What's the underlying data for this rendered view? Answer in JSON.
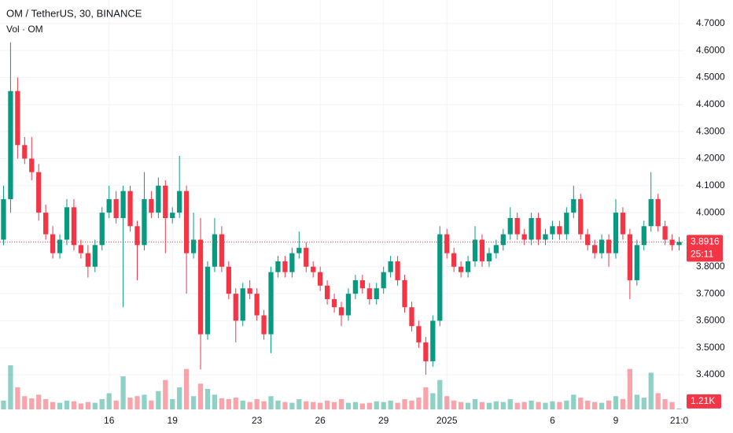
{
  "chart_data": {
    "type": "candlestick",
    "title": "OM / TetherUS, 30, BINANCE",
    "subtitle": "Vol · OM",
    "up_color": "#089981",
    "down_color": "#f23645",
    "grid": true,
    "categories": [
      null,
      null,
      null,
      null,
      null,
      null,
      null,
      null,
      null,
      null,
      null,
      null,
      null,
      null,
      null,
      "16",
      null,
      null,
      null,
      null,
      null,
      null,
      null,
      null,
      "19",
      null,
      null,
      null,
      null,
      null,
      null,
      null,
      null,
      null,
      null,
      null,
      "23",
      null,
      null,
      null,
      null,
      null,
      null,
      null,
      null,
      "26",
      null,
      null,
      null,
      null,
      null,
      null,
      null,
      null,
      "29",
      null,
      null,
      null,
      null,
      null,
      null,
      null,
      null,
      "2025",
      null,
      null,
      null,
      null,
      null,
      null,
      null,
      null,
      null,
      null,
      null,
      null,
      null,
      null,
      "6",
      null,
      null,
      null,
      null,
      null,
      null,
      null,
      null,
      "9",
      null,
      null,
      null,
      null,
      null,
      null,
      null,
      null,
      "21:0"
    ],
    "open": [
      3.9,
      4.05,
      4.45,
      4.25,
      4.2,
      4.15,
      4.0,
      3.92,
      3.85,
      3.9,
      4.02,
      3.88,
      3.85,
      3.8,
      3.88,
      4.0,
      4.05,
      3.98,
      4.08,
      3.95,
      3.88,
      4.05,
      4.0,
      4.1,
      3.98,
      4.0,
      4.08,
      3.85,
      3.9,
      3.55,
      3.8,
      3.92,
      3.8,
      3.7,
      3.6,
      3.72,
      3.7,
      3.62,
      3.55,
      3.78,
      3.82,
      3.78,
      3.85,
      3.87,
      3.8,
      3.78,
      3.73,
      3.68,
      3.65,
      3.62,
      3.7,
      3.75,
      3.72,
      3.68,
      3.72,
      3.78,
      3.82,
      3.75,
      3.65,
      3.58,
      3.52,
      3.45,
      3.6,
      3.92,
      3.85,
      3.8,
      3.78,
      3.82,
      3.9,
      3.82,
      3.85,
      3.88,
      3.92,
      3.98,
      3.92,
      3.9,
      3.98,
      3.9,
      3.92,
      3.95,
      3.92,
      4.0,
      4.05,
      3.92,
      3.88,
      3.85,
      3.9,
      3.85,
      4.0,
      3.92,
      3.75,
      3.88,
      3.95,
      4.05,
      3.95,
      3.9,
      3.88
    ],
    "high": [
      4.1,
      4.63,
      4.5,
      4.28,
      4.28,
      4.18,
      4.03,
      3.95,
      3.92,
      4.05,
      4.05,
      3.9,
      3.88,
      3.9,
      4.02,
      4.1,
      4.08,
      4.1,
      4.1,
      3.97,
      4.15,
      4.08,
      4.13,
      4.12,
      4.02,
      4.21,
      4.1,
      4.0,
      3.98,
      3.82,
      3.98,
      3.95,
      3.82,
      3.72,
      3.74,
      3.75,
      3.72,
      3.64,
      3.8,
      3.84,
      3.84,
      3.87,
      3.93,
      3.89,
      3.82,
      3.8,
      3.75,
      3.7,
      3.67,
      3.72,
      3.77,
      3.77,
      3.74,
      3.74,
      3.8,
      3.84,
      3.84,
      3.77,
      3.67,
      3.6,
      3.54,
      3.62,
      3.95,
      3.94,
      3.87,
      3.82,
      3.84,
      3.95,
      3.92,
      3.87,
      3.9,
      3.94,
      4.02,
      4.0,
      3.94,
      4.0,
      4.0,
      3.94,
      3.97,
      3.97,
      4.02,
      4.1,
      4.07,
      3.94,
      3.9,
      3.92,
      3.92,
      4.05,
      4.02,
      3.94,
      3.9,
      3.97,
      4.15,
      4.07,
      3.97,
      3.92,
      3.91
    ],
    "low": [
      3.88,
      4.0,
      4.2,
      4.18,
      4.12,
      3.97,
      3.9,
      3.83,
      3.83,
      3.88,
      3.86,
      3.83,
      3.76,
      3.78,
      3.86,
      3.98,
      3.96,
      3.65,
      3.93,
      3.75,
      3.86,
      3.98,
      3.98,
      3.85,
      3.96,
      3.98,
      3.7,
      3.83,
      3.42,
      3.53,
      3.78,
      3.78,
      3.68,
      3.52,
      3.58,
      3.68,
      3.6,
      3.53,
      3.48,
      3.76,
      3.76,
      3.76,
      3.83,
      3.78,
      3.76,
      3.71,
      3.66,
      3.63,
      3.58,
      3.6,
      3.68,
      3.7,
      3.66,
      3.66,
      3.7,
      3.76,
      3.73,
      3.63,
      3.56,
      3.5,
      3.4,
      3.43,
      3.58,
      3.83,
      3.78,
      3.76,
      3.76,
      3.8,
      3.8,
      3.8,
      3.83,
      3.86,
      3.9,
      3.9,
      3.88,
      3.88,
      3.88,
      3.88,
      3.9,
      3.9,
      3.9,
      3.98,
      3.9,
      3.86,
      3.83,
      3.83,
      3.8,
      3.83,
      3.9,
      3.68,
      3.73,
      3.86,
      3.93,
      3.93,
      3.88,
      3.86,
      3.86
    ],
    "close": [
      4.05,
      4.45,
      4.25,
      4.2,
      4.15,
      4.0,
      3.92,
      3.85,
      3.9,
      4.02,
      3.88,
      3.85,
      3.8,
      3.88,
      4.0,
      4.05,
      3.98,
      4.08,
      3.95,
      3.88,
      4.05,
      4.0,
      4.1,
      3.98,
      4.0,
      4.08,
      3.85,
      3.9,
      3.55,
      3.8,
      3.92,
      3.8,
      3.7,
      3.6,
      3.72,
      3.7,
      3.62,
      3.55,
      3.78,
      3.82,
      3.78,
      3.85,
      3.87,
      3.8,
      3.78,
      3.73,
      3.68,
      3.65,
      3.62,
      3.7,
      3.75,
      3.72,
      3.68,
      3.72,
      3.78,
      3.82,
      3.75,
      3.65,
      3.58,
      3.52,
      3.45,
      3.6,
      3.92,
      3.85,
      3.8,
      3.78,
      3.82,
      3.9,
      3.82,
      3.85,
      3.88,
      3.92,
      3.98,
      3.92,
      3.9,
      3.98,
      3.9,
      3.92,
      3.95,
      3.92,
      4.0,
      4.05,
      3.92,
      3.88,
      3.85,
      3.9,
      3.85,
      4.0,
      3.92,
      3.75,
      3.88,
      3.95,
      4.05,
      3.95,
      3.9,
      3.88,
      3.8916
    ],
    "volume": [
      12,
      60,
      30,
      18,
      15,
      20,
      14,
      10,
      9,
      12,
      11,
      8,
      10,
      9,
      14,
      22,
      12,
      45,
      16,
      18,
      20,
      12,
      25,
      40,
      14,
      30,
      55,
      18,
      35,
      28,
      20,
      15,
      14,
      16,
      12,
      10,
      14,
      11,
      18,
      12,
      10,
      9,
      14,
      11,
      10,
      9,
      12,
      10,
      14,
      9,
      10,
      8,
      9,
      11,
      10,
      12,
      9,
      14,
      12,
      16,
      30,
      22,
      40,
      18,
      12,
      10,
      9,
      14,
      10,
      9,
      11,
      10,
      14,
      9,
      10,
      12,
      10,
      9,
      11,
      10,
      12,
      20,
      16,
      12,
      10,
      9,
      12,
      18,
      14,
      55,
      20,
      16,
      50,
      22,
      14,
      10,
      1.21
    ],
    "vol_ylim": [
      0,
      150
    ],
    "volume_label": "1.21K",
    "ylim": [
      3.272,
      4.787
    ],
    "yticks": [
      {
        "value": 3.4,
        "label": "3.4000"
      },
      {
        "value": 3.5,
        "label": "3.5000"
      },
      {
        "value": 3.6,
        "label": "3.6000"
      },
      {
        "value": 3.7,
        "label": "3.7000"
      },
      {
        "value": 3.8,
        "label": "3.8000"
      },
      {
        "value": 4.0,
        "label": "4.0000"
      },
      {
        "value": 4.1,
        "label": "4.1000"
      },
      {
        "value": 4.2,
        "label": "4.2000"
      },
      {
        "value": 4.3,
        "label": "4.3000"
      },
      {
        "value": 4.4,
        "label": "4.4000"
      },
      {
        "value": 4.5,
        "label": "4.5000"
      },
      {
        "value": 4.6,
        "label": "4.6000"
      },
      {
        "value": 4.7,
        "label": "4.7000"
      }
    ],
    "last_price": 3.8916,
    "countdown": "25:11"
  }
}
